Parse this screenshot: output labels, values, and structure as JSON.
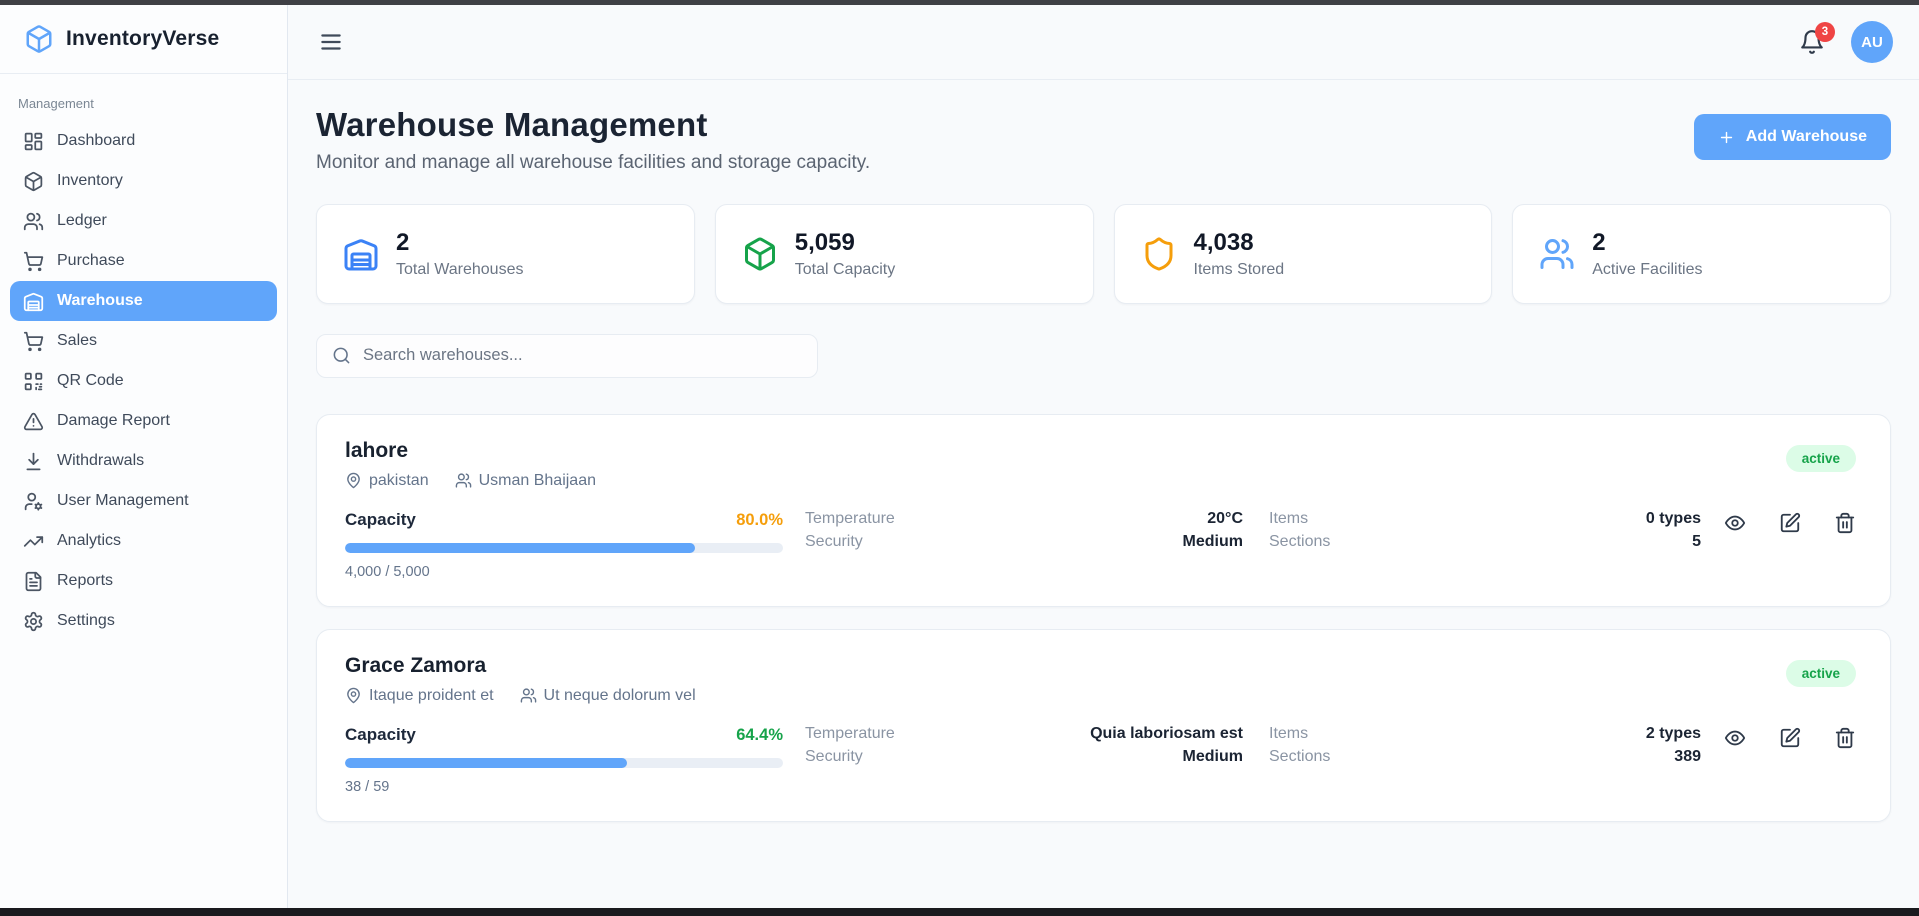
{
  "sidebar": {
    "brand": "InventoryVerse",
    "section_label": "Management",
    "items": [
      {
        "label": "Dashboard",
        "icon": "dashboard",
        "active": false
      },
      {
        "label": "Inventory",
        "icon": "package",
        "active": false
      },
      {
        "label": "Ledger",
        "icon": "users",
        "active": false
      },
      {
        "label": "Purchase",
        "icon": "cart",
        "active": false
      },
      {
        "label": "Warehouse",
        "icon": "warehouse",
        "active": true
      },
      {
        "label": "Sales",
        "icon": "cart",
        "active": false
      },
      {
        "label": "QR Code",
        "icon": "qr",
        "active": false
      },
      {
        "label": "Damage Report",
        "icon": "alert",
        "active": false
      },
      {
        "label": "Withdrawals",
        "icon": "download",
        "active": false
      },
      {
        "label": "User Management",
        "icon": "usercog",
        "active": false
      },
      {
        "label": "Analytics",
        "icon": "trending",
        "active": false
      },
      {
        "label": "Reports",
        "icon": "file",
        "active": false
      },
      {
        "label": "Settings",
        "icon": "gear",
        "active": false
      }
    ]
  },
  "topbar": {
    "notification_count": "3",
    "avatar_initials": "AU"
  },
  "header": {
    "title": "Warehouse Management",
    "subtitle": "Monitor and manage all warehouse facilities and storage capacity.",
    "add_button_label": "Add Warehouse"
  },
  "stats": [
    {
      "value": "2",
      "label": "Total Warehouses",
      "icon": "warehouse",
      "color": "#3b82f6"
    },
    {
      "value": "5,059",
      "label": "Total Capacity",
      "icon": "package",
      "color": "#16a34a"
    },
    {
      "value": "4,038",
      "label": "Items Stored",
      "icon": "shield",
      "color": "#f59e0b"
    },
    {
      "value": "2",
      "label": "Active Facilities",
      "icon": "users",
      "color": "#60a5fa"
    }
  ],
  "search": {
    "placeholder": "Search warehouses..."
  },
  "warehouses": [
    {
      "name": "lahore",
      "location": "pakistan",
      "manager": "Usman Bhaijaan",
      "status": "active",
      "capacity_label": "Capacity",
      "capacity_pct": "80.0%",
      "capacity_pct_value": 80,
      "capacity_pct_color": "#f59e0b",
      "capacity_count": "4,000 / 5,000",
      "temperature_label": "Temperature",
      "temperature": "20°C",
      "security_label": "Security",
      "security": "Medium",
      "items_label": "Items",
      "items": "0 types",
      "sections_label": "Sections",
      "sections": "5"
    },
    {
      "name": "Grace Zamora",
      "location": "Itaque proident et",
      "manager": "Ut neque dolorum vel",
      "status": "active",
      "capacity_label": "Capacity",
      "capacity_pct": "64.4%",
      "capacity_pct_value": 64.4,
      "capacity_pct_color": "#16a34a",
      "capacity_count": "38 / 59",
      "temperature_label": "Temperature",
      "temperature": "Quia laboriosam est",
      "security_label": "Security",
      "security": "Medium",
      "items_label": "Items",
      "items": "2 types",
      "sections_label": "Sections",
      "sections": "389"
    }
  ],
  "colors": {
    "accent": "#60a5fa",
    "progress_fill": "#60a5fa",
    "badge_bg": "#dcfce7",
    "badge_text": "#16a34a",
    "notification_badge": "#ef4444"
  }
}
